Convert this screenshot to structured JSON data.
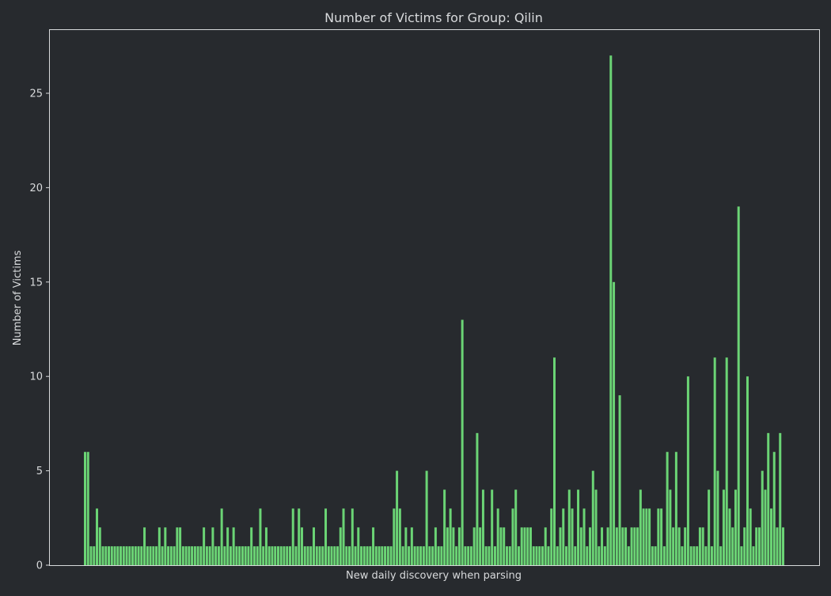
{
  "colors": {
    "background": "#272a2e",
    "bar": "#6bd475",
    "frame": "#d8dadc",
    "text": "#d8dadc"
  },
  "chart_data": {
    "type": "bar",
    "title": "Number of Victims for Group: Qilin",
    "xlabel": "New daily discovery when parsing",
    "ylabel": "Number of Victims",
    "xticks_visible": false,
    "grid": false,
    "ylim": [
      0,
      28.35
    ],
    "yticks": [
      0,
      5,
      10,
      15,
      20,
      25
    ],
    "values": [
      6,
      6,
      1,
      1,
      3,
      2,
      1,
      1,
      1,
      1,
      1,
      1,
      1,
      1,
      1,
      1,
      1,
      1,
      1,
      1,
      2,
      1,
      1,
      1,
      1,
      2,
      1,
      2,
      1,
      1,
      1,
      2,
      2,
      1,
      1,
      1,
      1,
      1,
      1,
      1,
      2,
      1,
      1,
      2,
      1,
      1,
      3,
      1,
      2,
      1,
      2,
      1,
      1,
      1,
      1,
      1,
      2,
      1,
      1,
      3,
      1,
      2,
      1,
      1,
      1,
      1,
      1,
      1,
      1,
      1,
      3,
      1,
      3,
      2,
      1,
      1,
      1,
      2,
      1,
      1,
      1,
      3,
      1,
      1,
      1,
      1,
      2,
      3,
      1,
      1,
      3,
      1,
      2,
      1,
      1,
      1,
      1,
      2,
      1,
      1,
      1,
      1,
      1,
      1,
      3,
      5,
      3,
      1,
      2,
      1,
      2,
      1,
      1,
      1,
      1,
      5,
      1,
      1,
      2,
      1,
      1,
      4,
      2,
      3,
      2,
      1,
      2,
      13,
      1,
      1,
      1,
      2,
      7,
      2,
      4,
      1,
      1,
      4,
      1,
      3,
      2,
      2,
      1,
      1,
      3,
      4,
      1,
      2,
      2,
      2,
      2,
      1,
      1,
      1,
      1,
      2,
      1,
      3,
      11,
      1,
      2,
      3,
      1,
      4,
      3,
      1,
      4,
      2,
      3,
      1,
      2,
      5,
      4,
      1,
      2,
      1,
      2,
      27,
      15,
      2,
      9,
      2,
      2,
      1,
      2,
      2,
      2,
      4,
      3,
      3,
      3,
      1,
      1,
      3,
      3,
      1,
      6,
      4,
      2,
      6,
      2,
      1,
      2,
      10,
      1,
      1,
      1,
      2,
      2,
      1,
      4,
      1,
      11,
      5,
      1,
      4,
      11,
      3,
      2,
      4,
      19,
      1,
      2,
      10,
      3,
      1,
      2,
      2,
      5,
      4,
      7,
      3,
      6,
      2,
      7,
      2
    ]
  }
}
